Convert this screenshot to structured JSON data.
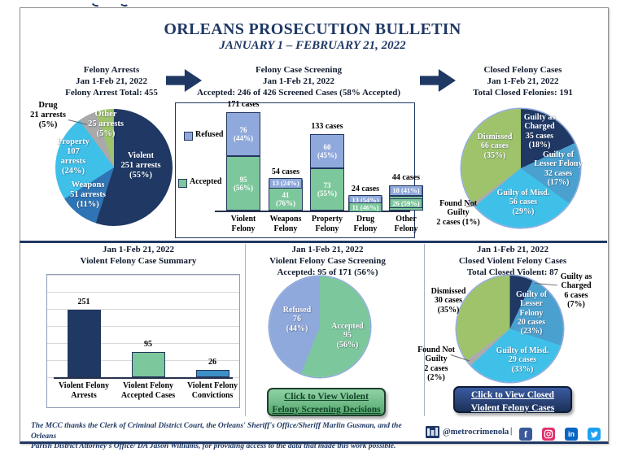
{
  "page": {
    "title": "ORLEANS PROSECUTION BULLETIN",
    "subtitle": "JANUARY 1 – FEBRUARY 21, 2022"
  },
  "colors": {
    "navy": "#1F3864",
    "medium_blue": "#2F74B5",
    "lesser_blue": "#4AA0CE",
    "steel_blue": "#3E8FC6",
    "cyan": "#3FC0E9",
    "pie_green": "#9EC36B",
    "accepted_green": "#7CC79B",
    "refused_blue": "#8FA9DC",
    "gray": "#ABABAB"
  },
  "panels": {
    "felony_arrests": {
      "heading": "Felony Arrests\nJan 1-Feb 21, 2022\nFelony Arrest Total: 455",
      "labels": {
        "violent": "Violent\n251 arrests\n(55%)",
        "weapons": "Weapons\n51 arrests\n(11%)",
        "property": "Property\n107\narrests\n(24%)",
        "drug": "Drug\n21 arrests\n(5%)",
        "other": "Other\n25 arrests\n(5%)"
      }
    },
    "case_screening": {
      "heading": "Felony Case Screening\nJan 1-Feb 21, 2022\nAccepted: 246 of 426 Screened Cases (58% Accepted)",
      "legend": {
        "refused": "Refused",
        "accepted": "Accepted"
      }
    },
    "closed_felony": {
      "heading": "Closed Felony Cases\nJan 1-Feb 21, 2022\nTotal Closed Felonies: 191",
      "labels": {
        "guilty_charged": "Guilty as\nCharged\n35 cases\n(18%)",
        "guilty_lesser": "Guilty of\nLesser Felony\n32 cases\n(17%)",
        "guilty_misd": "Guilty of Misd.\n56 cases\n(29%)",
        "dismissed": "Dismissed\n66 cases\n(35%)",
        "not_guilty": "Found Not\nGuilty\n2 cases (1%)"
      }
    },
    "violent_summary": {
      "heading": "Jan 1-Feb 21, 2022\nViolent Felony Case Summary"
    },
    "violent_screening": {
      "heading": "Jan 1-Feb 21, 2022\nViolent Felony Case Screening\nAccepted: 95 of 171 (56%)",
      "labels": {
        "refused": "Refused\n76\n(44%)",
        "accepted": "Accepted\n95\n(56%)"
      },
      "button": "Click to View Violent\nFelony Screening Decisions"
    },
    "closed_violent": {
      "heading": "Jan 1-Feb 21, 2022\nClosed Violent Felony Cases\nTotal Closed Violent: 87",
      "labels": {
        "guilty_charged": "Guilty as\nCharged\n6 cases\n(7%)",
        "guilty_lesser": "Guilty of\nLesser\nFelony\n20 cases\n(23%)",
        "guilty_misd": "Guilty of Misd.\n29 cases\n(33%)",
        "dismissed": "Dismissed\n30 cases\n(35%)",
        "not_guilty": "Found Not\nGuilty\n2 cases\n(2%)"
      },
      "button": "Click to View Closed\nViolent Felony Cases"
    }
  },
  "footer": {
    "credit": "The MCC thanks the Clerk of Criminal District Court, the Orleans' Sheriff's Office/Sheriff Marlin Gusman, and the Orleans\nParish District Attorney's Office/ DA Jason Williams, for providing access to the data that made this work possible.",
    "handle": "@metrocrimenola",
    "separator": "|",
    "facebook_glyph": "f",
    "linkedin_glyph": "in"
  },
  "chart_data": [
    {
      "type": "pie",
      "title": "Felony Arrests",
      "period": "Jan 1-Feb 21, 2022",
      "total": 455,
      "slices": [
        {
          "label": "Violent",
          "value": 251,
          "pct": 55,
          "color": "#1F3864"
        },
        {
          "label": "Weapons",
          "value": 51,
          "pct": 11,
          "color": "#2F74B5"
        },
        {
          "label": "Property",
          "value": 107,
          "pct": 24,
          "color": "#3FC0E9"
        },
        {
          "label": "Drug",
          "value": 21,
          "pct": 5,
          "color": "#A9A9A9"
        },
        {
          "label": "Other",
          "value": 25,
          "pct": 5,
          "color": "#9EC36B"
        }
      ]
    },
    {
      "type": "bar-stacked",
      "title": "Felony Case Screening",
      "period": "Jan 1-Feb 21, 2022",
      "subtitle": "Accepted: 246 of 426 Screened Cases (58% Accepted)",
      "categories": [
        "Violent\nFelony",
        "Weapons\nFelony",
        "Property\nFelony",
        "Drug\nFelony",
        "Other\nFelony"
      ],
      "totals": [
        171,
        54,
        133,
        24,
        44
      ],
      "total_labels": [
        "171 cases",
        "54 cases",
        "133 cases",
        "24 cases",
        "44 cases"
      ],
      "series": [
        {
          "name": "Refused",
          "color": "#8FA9DC",
          "values": [
            76,
            13,
            60,
            13,
            18
          ],
          "display": [
            "76\n(44%)",
            "13 (24%)",
            "60\n(45%)",
            "13 (54%)",
            "18 (41%)"
          ]
        },
        {
          "name": "Accepted",
          "color": "#7CC79B",
          "values": [
            95,
            41,
            73,
            11,
            26
          ],
          "display": [
            "95\n(56%)",
            "41\n(76%)",
            "73\n(55%)",
            "11 (46%)",
            "26 (59%)"
          ]
        }
      ]
    },
    {
      "type": "pie",
      "title": "Closed Felony Cases",
      "period": "Jan 1-Feb 21, 2022",
      "total": 191,
      "slices": [
        {
          "label": "Guilty as Charged",
          "value": 35,
          "pct": 18,
          "color": "#1F3864"
        },
        {
          "label": "Guilty of Lesser Felony",
          "value": 32,
          "pct": 17,
          "color": "#4AA0CE"
        },
        {
          "label": "Guilty of Misd.",
          "value": 56,
          "pct": 29,
          "color": "#3FC0E9"
        },
        {
          "label": "Found Not Guilty",
          "value": 2,
          "pct": 1,
          "color": "#ABABAB"
        },
        {
          "label": "Dismissed",
          "value": 66,
          "pct": 35,
          "color": "#9EC36B"
        }
      ]
    },
    {
      "type": "bar",
      "title": "Violent Felony Case Summary",
      "period": "Jan 1-Feb 21, 2022",
      "categories": [
        "Violent Felony\nArrests",
        "Violent Felony\nAccepted Cases",
        "Violent Felony\nConvictions"
      ],
      "values": [
        251,
        95,
        26
      ],
      "colors": [
        "#1F3864",
        "#7CC79B",
        "#3E8FC6"
      ],
      "grid": true
    },
    {
      "type": "pie",
      "title": "Violent Felony Case Screening",
      "period": "Jan 1-Feb 21, 2022",
      "subtitle": "Accepted: 95 of 171 (56%)",
      "slices": [
        {
          "label": "Accepted",
          "value": 95,
          "pct": 56,
          "color": "#7CC79B"
        },
        {
          "label": "Refused",
          "value": 76,
          "pct": 44,
          "color": "#8FA9DC"
        }
      ]
    },
    {
      "type": "pie",
      "title": "Closed Violent Felony Cases",
      "period": "Jan 1-Feb 21, 2022",
      "total": 87,
      "slices": [
        {
          "label": "Guilty as Charged",
          "value": 6,
          "pct": 7,
          "color": "#1F3864"
        },
        {
          "label": "Guilty of Lesser Felony",
          "value": 20,
          "pct": 23,
          "color": "#4AA0CE"
        },
        {
          "label": "Guilty of Misd.",
          "value": 29,
          "pct": 33,
          "color": "#3FC0E9"
        },
        {
          "label": "Found Not Guilty",
          "value": 2,
          "pct": 2,
          "color": "#ABABAB"
        },
        {
          "label": "Dismissed",
          "value": 30,
          "pct": 35,
          "color": "#9EC36B"
        }
      ]
    }
  ]
}
